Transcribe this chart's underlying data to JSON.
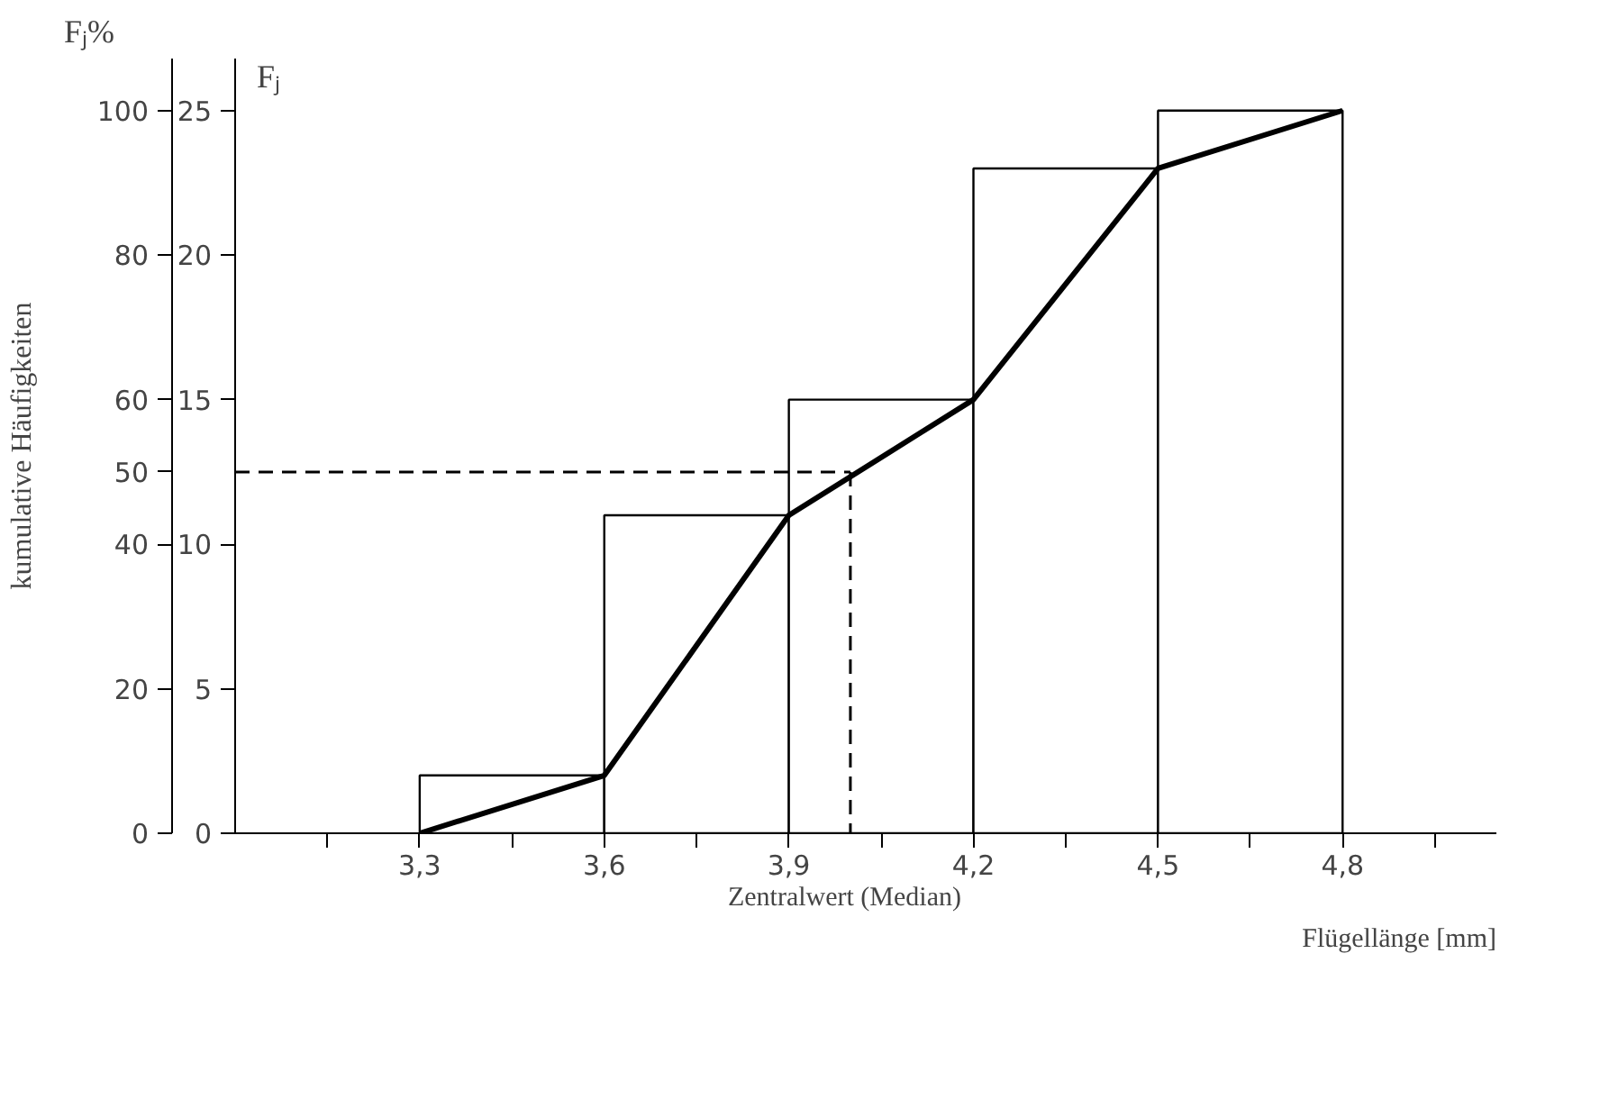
{
  "chart_data": {
    "type": "histogram",
    "bins": [
      3.3,
      3.6,
      3.9,
      4.2,
      4.5,
      4.8
    ],
    "values": [
      2,
      11,
      15,
      23,
      25
    ],
    "color": "#ffffff",
    "series": [
      {
        "type": "line",
        "x": [
          3.3,
          3.6,
          3.9,
          4.2,
          4.5,
          4.8
        ],
        "values": [
          0,
          2,
          11,
          15,
          23,
          25
        ],
        "color": "#000000"
      }
    ],
    "xlabel": "Flügellänge [mm]",
    "ylabel": "Fⱼ",
    "y2label": "kumulative Häufigkeiten",
    "annotations": [
      "Fⱼ%"
    ],
    "xlim": [
      3.0,
      5.05
    ],
    "ylim": [
      0,
      26.8
    ],
    "y2lim": [
      0,
      107.2
    ],
    "xticks": [
      {
        "value": 3.15,
        "label": null
      },
      {
        "value": 3.3,
        "label": "3,3"
      },
      {
        "value": 3.45,
        "label": null
      },
      {
        "value": 3.6,
        "label": "3,6"
      },
      {
        "value": 3.75,
        "label": null
      },
      {
        "value": 3.9,
        "label": "3,9"
      },
      {
        "value": 4.05,
        "label": null
      },
      {
        "value": 4.2,
        "label": "4,2"
      },
      {
        "value": 4.35,
        "label": null
      },
      {
        "value": 4.5,
        "label": "4,5"
      },
      {
        "value": 4.65,
        "label": null
      },
      {
        "value": 4.8,
        "label": "4,8"
      },
      {
        "value": 4.95,
        "label": null
      }
    ],
    "yticks": [
      0,
      5,
      10,
      15,
      20,
      25
    ],
    "y2ticks": [
      0,
      20,
      40,
      50,
      60,
      80,
      100
    ],
    "ref_lines": [
      {
        "axis": "y2",
        "value": 50,
        "line_style": "dashed"
      },
      {
        "axis": "x",
        "value": 4.0,
        "label": "Zentralwert (Median)",
        "line_style": "dashed"
      }
    ],
    "grid": false
  }
}
